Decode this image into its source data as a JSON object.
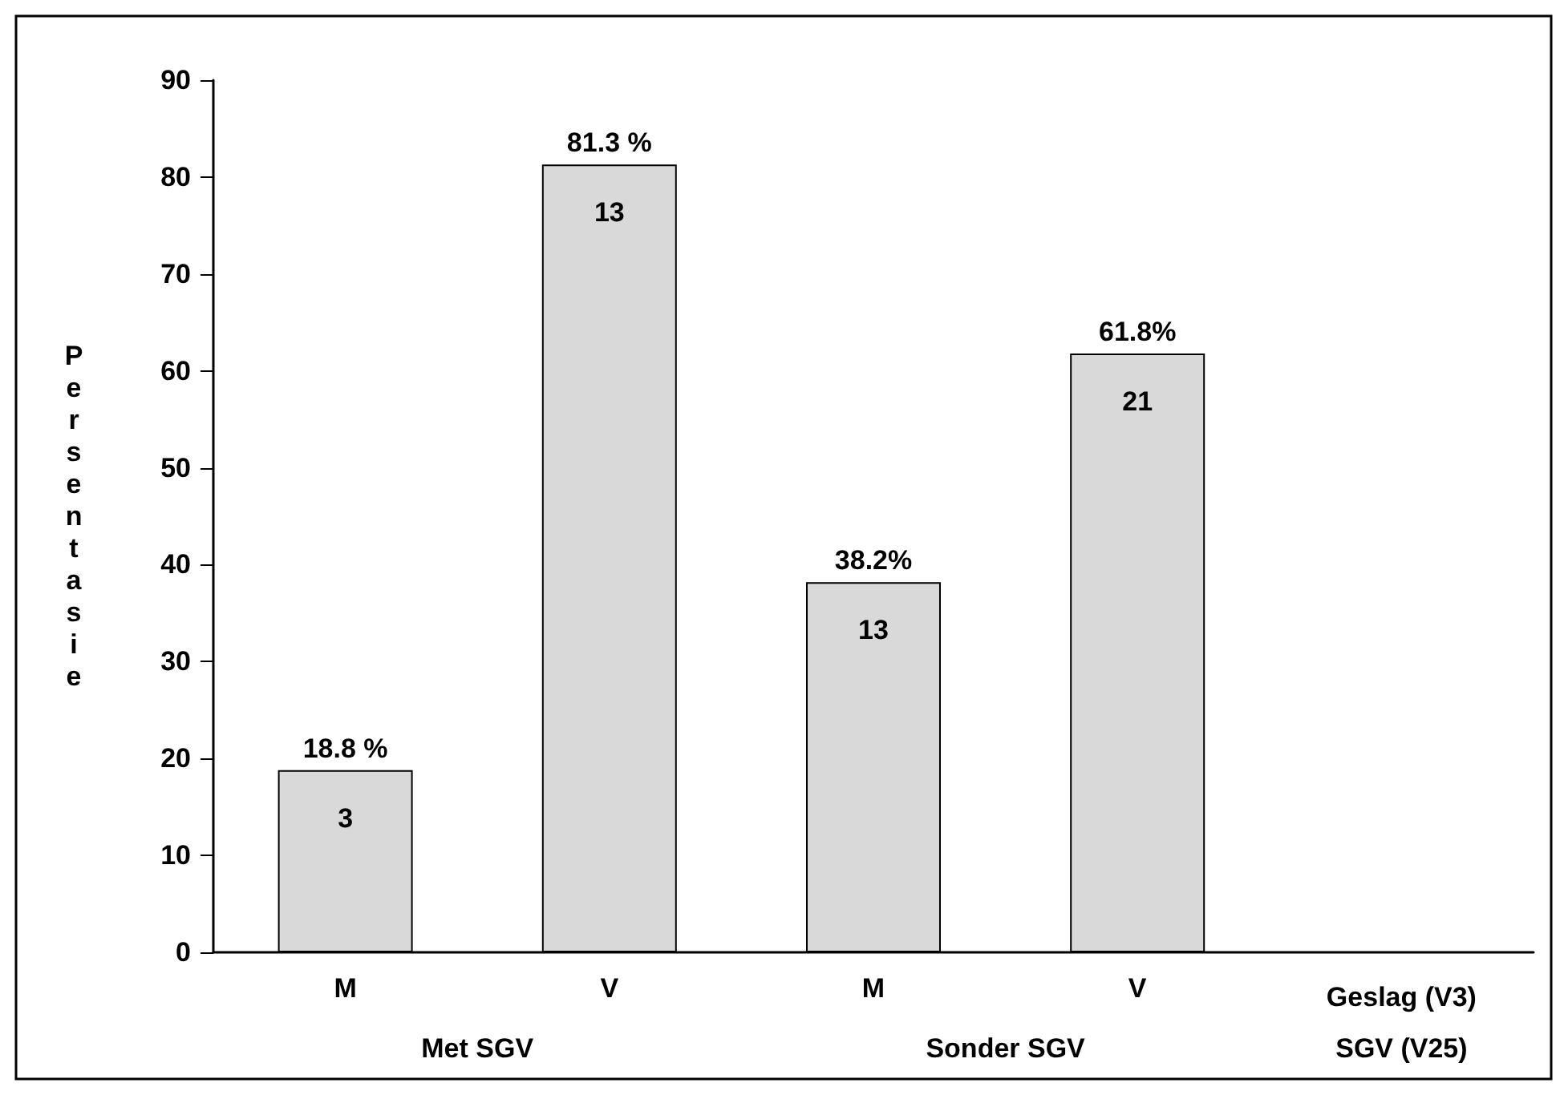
{
  "chart_data": {
    "type": "bar",
    "ylabel": "Persentasie",
    "xlabel": "Geslag (V3)",
    "categories": [
      "M",
      "V",
      "M",
      "V"
    ],
    "values": [
      18.8,
      81.3,
      38.2,
      61.8
    ],
    "value_labels": [
      "18.8 %",
      "81.3 %",
      "38.2%",
      "61.8%"
    ],
    "color": "#d9d9d9",
    "ylim": [
      0,
      90
    ],
    "yticks": [
      0,
      10,
      20,
      30,
      40,
      50,
      60,
      70,
      80,
      90
    ],
    "grid": false,
    "annotations": [
      "3",
      "13",
      "13",
      "21",
      "Met SGV",
      "Sonder SGV",
      "SGV (V25)"
    ]
  }
}
